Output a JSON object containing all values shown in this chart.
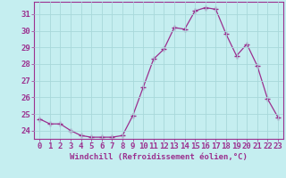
{
  "x": [
    0,
    1,
    2,
    3,
    4,
    5,
    6,
    7,
    8,
    9,
    10,
    11,
    12,
    13,
    14,
    15,
    16,
    17,
    18,
    19,
    20,
    21,
    22,
    23
  ],
  "y": [
    24.7,
    24.4,
    24.4,
    24.0,
    23.7,
    23.6,
    23.6,
    23.6,
    23.7,
    24.9,
    26.6,
    28.3,
    28.9,
    30.2,
    30.1,
    31.2,
    31.4,
    31.3,
    29.8,
    28.5,
    29.2,
    27.9,
    25.9,
    24.8
  ],
  "line_color": "#9b308f",
  "marker": "+",
  "marker_size": 4,
  "bg_color": "#c5eef0",
  "grid_color": "#a8d8da",
  "xlabel": "Windchill (Refroidissement éolien,°C)",
  "ylim": [
    23.5,
    31.75
  ],
  "xlim": [
    -0.5,
    23.5
  ],
  "yticks": [
    24,
    25,
    26,
    27,
    28,
    29,
    30,
    31
  ],
  "xticks": [
    0,
    1,
    2,
    3,
    4,
    5,
    6,
    7,
    8,
    9,
    10,
    11,
    12,
    13,
    14,
    15,
    16,
    17,
    18,
    19,
    20,
    21,
    22,
    23
  ],
  "tick_color": "#9b308f",
  "label_fontsize": 6.5,
  "tick_fontsize": 6.5
}
